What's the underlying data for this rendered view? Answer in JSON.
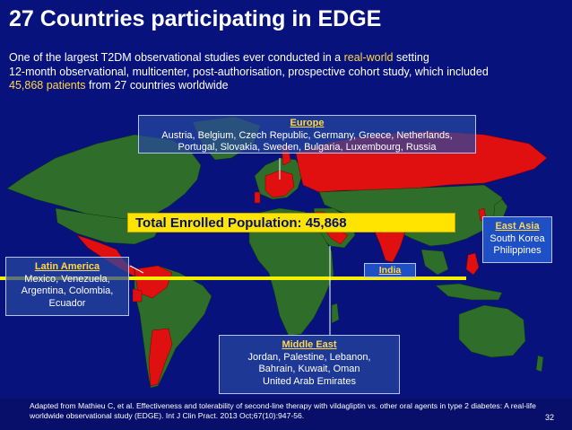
{
  "slide": {
    "title": "27 Countries participating in EDGE",
    "subtitle": {
      "line1_pre": "One of the largest T2DM observational studies ever conducted in a ",
      "line1_hl": "real-world",
      "line1_post": " setting",
      "line2": "12-month observational, multicenter, post-authorisation, prospective cohort study, which included",
      "line3_hl": "45,868 patients",
      "line3_post": " from 27 countries worldwide"
    },
    "total_label": "Total Enrolled Population: 45,868",
    "regions": {
      "europe": {
        "head": "Europe",
        "line1": "Austria, Belgium, Czech Republic, Germany, Greece, Netherlands,",
        "line2": "Portugal, Slovakia, Sweden, Bulgaria, Luxembourg, Russia"
      },
      "latin_america": {
        "head": "Latin America",
        "line1": "Mexico, Venezuela,",
        "line2": "Argentina, Colombia,",
        "line3": "Ecuador"
      },
      "east_asia": {
        "head": "East Asia",
        "line1": "South Korea",
        "line2": "Philippines"
      },
      "india": {
        "head": "India"
      },
      "middle_east": {
        "head": "Middle East",
        "line1": "Jordan, Palestine, Lebanon,",
        "line2": "Bahrain, Kuwait, Oman",
        "line3": "United Arab Emirates"
      }
    },
    "citation": "Adapted from Mathieu C, et al. Effectiveness and tolerability of second-line therapy with vildagliptin vs. other oral agents in type 2 diabetes: A real-life worldwide observational study (EDGE). Int J Clin Pract. 2013 Oct;67(10):947-56.",
    "page_number": "32",
    "colors": {
      "background": "#07127c",
      "highlight": "#ffd84a",
      "participating": "#e01010",
      "land": "#2e6e2a",
      "equator": "#f5f000"
    }
  }
}
